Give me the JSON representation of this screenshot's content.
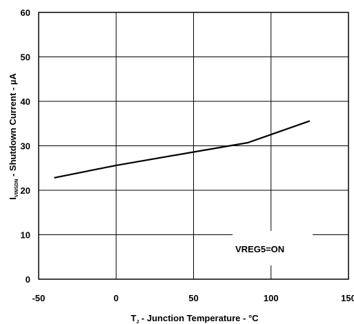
{
  "chart_data": {
    "type": "line",
    "xlabel": {
      "symbol": "T",
      "subscript": "J",
      "text": " - Junction Temperature - °C"
    },
    "ylabel": {
      "symbol": "I",
      "subscript": "VINSDN",
      "text": " - Shutdown Current - µA"
    },
    "xlim": [
      -50,
      150
    ],
    "ylim": [
      0,
      60
    ],
    "xticks": [
      "-50",
      "0",
      "50",
      "100",
      "150"
    ],
    "yticks": [
      "0",
      "10",
      "20",
      "30",
      "40",
      "50",
      "60"
    ],
    "grid": true,
    "annotation": "VREG5=ON",
    "series": [
      {
        "x": [
          -40,
          0,
          50,
          85,
          125
        ],
        "y": [
          22.8,
          25.6,
          28.6,
          30.7,
          35.6
        ]
      }
    ]
  }
}
